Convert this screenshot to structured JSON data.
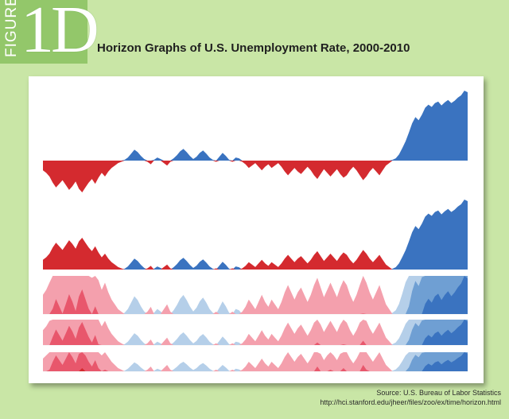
{
  "figure_badge": {
    "word": "FIGURE",
    "number": "1D"
  },
  "page": {
    "title": "Horizon Graphs of U.S. Unemployment Rate, 2000-2010",
    "source_line1": "Source: U.S. Bureau of Labor Statistics",
    "source_line2": "http://hci.stanford.edu/jheer/files/zoo/ex/time/horizon.html"
  },
  "colors": {
    "background": "#c9e6a6",
    "badge": "#93c76a",
    "negative_band_1": "#f4a0ad",
    "negative_band_2": "#e8576c",
    "negative_band_3": "#d42a2f",
    "positive_band_1": "#b5cfe9",
    "positive_band_2": "#6f9fd3",
    "positive_band_3": "#3a73c0"
  },
  "chart_data": {
    "type": "area",
    "description_variants": [
      "diverging area",
      "mirrored area",
      "horizon 3 bands",
      "horizon 3 bands compressed",
      "horizon 3 bands compressed"
    ],
    "x": [
      0,
      1,
      2,
      3,
      4,
      5,
      6,
      7,
      8,
      9,
      10,
      11,
      12,
      13,
      14,
      15,
      16,
      17,
      18,
      19,
      20,
      21,
      22,
      23,
      24,
      25,
      26,
      27,
      28,
      29,
      30,
      31,
      32,
      33,
      34,
      35,
      36,
      37,
      38,
      39,
      40,
      41,
      42,
      43,
      44,
      45,
      46,
      47,
      48,
      49,
      50,
      51,
      52,
      53,
      54,
      55,
      56,
      57,
      58,
      59,
      60,
      61,
      62,
      63,
      64,
      65,
      66,
      67,
      68,
      69,
      70,
      71,
      72,
      73,
      74,
      75,
      76,
      77,
      78,
      79,
      80,
      81,
      82,
      83,
      84,
      85,
      86,
      87,
      88,
      89,
      90,
      91,
      92,
      93,
      94,
      95,
      96,
      97,
      98,
      99,
      100,
      101,
      102,
      103,
      104,
      105,
      106,
      107,
      108,
      109,
      110,
      111,
      112,
      113,
      114,
      115,
      116,
      117,
      118,
      119,
      120,
      121,
      122,
      123,
      124,
      125,
      126,
      127,
      128,
      129,
      130
    ],
    "series": [
      {
        "values": [
          -0.8,
          -1.0,
          -1.3,
          -1.8,
          -2.2,
          -1.9,
          -1.6,
          -2.0,
          -2.4,
          -2.1,
          -1.7,
          -2.3,
          -2.6,
          -2.2,
          -1.8,
          -1.5,
          -1.9,
          -1.4,
          -1.0,
          -1.3,
          -0.9,
          -0.6,
          -0.4,
          -0.2,
          -0.1,
          0.1,
          0.4,
          0.9,
          1.4,
          1.1,
          0.6,
          0.2,
          -0.1,
          -0.3,
          0.1,
          0.4,
          0.2,
          -0.2,
          -0.4,
          -0.1,
          0.3,
          0.7,
          1.2,
          1.5,
          1.1,
          0.6,
          0.2,
          0.5,
          1.0,
          1.3,
          0.9,
          0.4,
          0.1,
          -0.1,
          0.5,
          1.0,
          0.6,
          0.1,
          -0.1,
          0.4,
          0.3,
          -0.1,
          -0.3,
          -0.6,
          -0.4,
          -0.2,
          -0.5,
          -0.8,
          -0.5,
          -0.3,
          -0.6,
          -0.4,
          -0.2,
          -0.5,
          -0.9,
          -1.2,
          -0.9,
          -0.6,
          -0.9,
          -1.1,
          -0.8,
          -0.5,
          -0.8,
          -1.2,
          -1.5,
          -1.1,
          -0.7,
          -1.0,
          -1.3,
          -1.0,
          -0.7,
          -1.1,
          -1.4,
          -1.2,
          -0.8,
          -0.5,
          -0.8,
          -1.2,
          -1.6,
          -1.3,
          -0.9,
          -0.6,
          -0.9,
          -1.2,
          -0.8,
          -0.4,
          -0.2,
          0.1,
          0.3,
          0.8,
          1.6,
          2.5,
          3.6,
          4.8,
          5.6,
          5.2,
          5.9,
          6.8,
          7.2,
          6.9,
          7.4,
          7.6,
          7.1,
          7.5,
          7.8,
          7.4,
          7.7,
          8.1,
          8.4,
          9.0,
          8.8
        ]
      }
    ],
    "ylim": [
      -3,
      9
    ]
  }
}
